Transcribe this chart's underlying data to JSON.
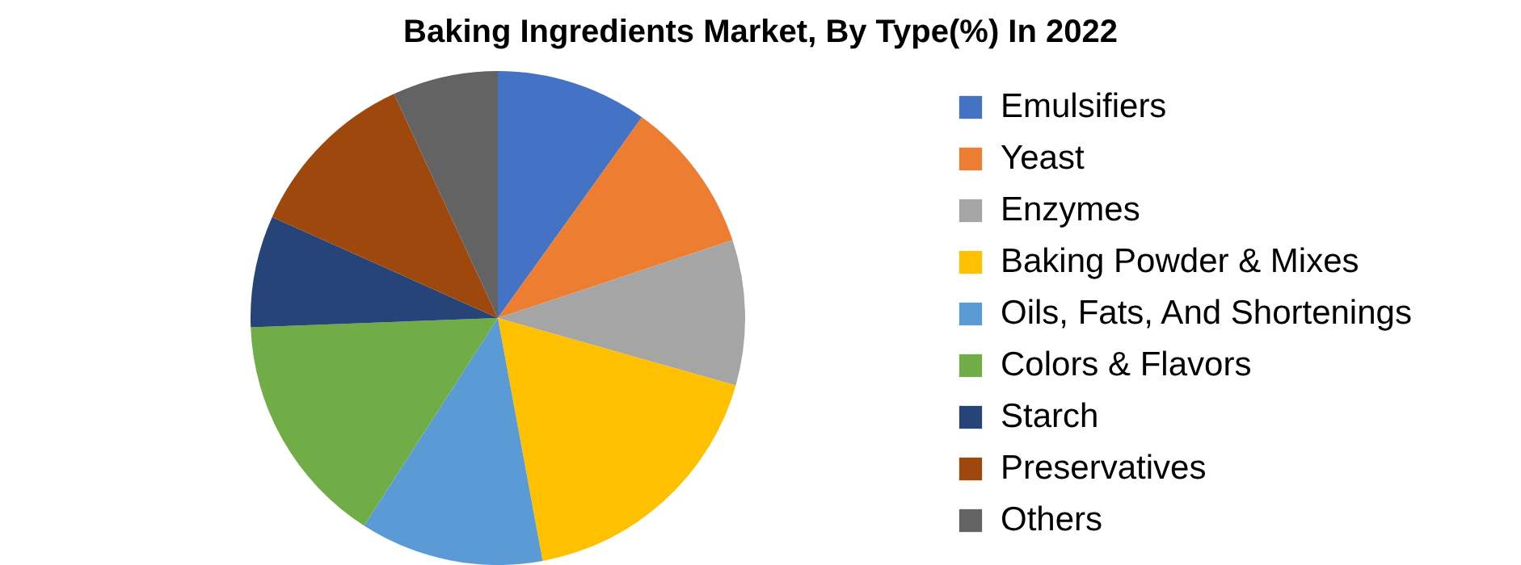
{
  "chart_data": {
    "type": "pie",
    "title": "Baking Ingredients Market, By Type(%) In 2022",
    "categories": [
      "Emulsifiers",
      "Yeast",
      "Enzymes",
      "Baking Powder & Mixes",
      "Oils, Fats, And Shortenings",
      "Colors & Flavors",
      "Starch",
      "Preservatives",
      "Others"
    ],
    "values": [
      9.9,
      10.0,
      9.5,
      17.7,
      12.0,
      15.3,
      7.3,
      11.4,
      6.9
    ],
    "colors": [
      "#4472c4",
      "#ed7d31",
      "#a5a5a5",
      "#ffc000",
      "#5b9bd5",
      "#70ad47",
      "#264478",
      "#9e480e",
      "#636363"
    ],
    "legend": "right"
  }
}
